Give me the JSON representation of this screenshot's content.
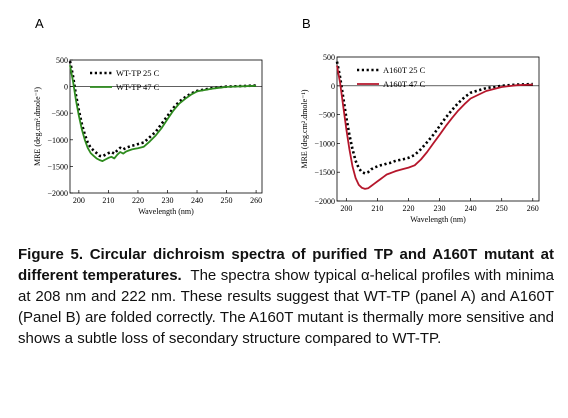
{
  "panels": [
    {
      "letter": "A"
    },
    {
      "letter": "B"
    }
  ],
  "chart_data": [
    {
      "type": "line",
      "xlabel": "Wavelength (nm)",
      "ylabel": "MRE (deg.cm².dmole⁻¹)",
      "xlim": [
        197,
        262
      ],
      "ylim": [
        -2000,
        500
      ],
      "xticks": [
        200,
        210,
        220,
        230,
        240,
        250,
        260
      ],
      "yticks": [
        500,
        0,
        -500,
        -1000,
        -1500,
        -2000
      ],
      "legend_position": "top-left",
      "grid": false,
      "series": [
        {
          "name": "WT-TP 25 C",
          "color": "#000000",
          "style": "dotted",
          "x": [
            197,
            198,
            199,
            200,
            201,
            202,
            203,
            204,
            205,
            206,
            207,
            208,
            209,
            210,
            211,
            212,
            213,
            214,
            215,
            216,
            217,
            218,
            219,
            220,
            222,
            224,
            226,
            228,
            230,
            232,
            234,
            236,
            238,
            240,
            245,
            250,
            255,
            260
          ],
          "y": [
            480,
            200,
            -150,
            -450,
            -700,
            -900,
            -1050,
            -1150,
            -1200,
            -1250,
            -1300,
            -1310,
            -1280,
            -1250,
            -1230,
            -1260,
            -1200,
            -1150,
            -1180,
            -1150,
            -1130,
            -1110,
            -1100,
            -1080,
            -1050,
            -950,
            -850,
            -700,
            -550,
            -400,
            -280,
            -200,
            -130,
            -80,
            -30,
            0,
            10,
            20
          ]
        },
        {
          "name": "WT-TP 47 C",
          "color": "#2e8b1e",
          "style": "solid",
          "x": [
            197,
            198,
            199,
            200,
            201,
            202,
            203,
            204,
            205,
            206,
            207,
            208,
            209,
            210,
            211,
            212,
            213,
            214,
            215,
            216,
            217,
            218,
            219,
            220,
            222,
            224,
            226,
            228,
            230,
            232,
            234,
            236,
            238,
            240,
            245,
            250,
            255,
            260
          ],
          "y": [
            400,
            100,
            -250,
            -550,
            -800,
            -1000,
            -1150,
            -1250,
            -1300,
            -1350,
            -1380,
            -1400,
            -1370,
            -1340,
            -1320,
            -1350,
            -1280,
            -1230,
            -1260,
            -1220,
            -1200,
            -1180,
            -1170,
            -1160,
            -1130,
            -1030,
            -920,
            -780,
            -610,
            -450,
            -320,
            -230,
            -150,
            -90,
            -40,
            -5,
            5,
            15
          ]
        }
      ]
    },
    {
      "type": "line",
      "xlabel": "Wavelength (nm)",
      "ylabel": "MRE (deg.cm².dmole⁻¹)",
      "xlim": [
        197,
        262
      ],
      "ylim": [
        -2000,
        500
      ],
      "xticks": [
        200,
        210,
        220,
        230,
        240,
        250,
        260
      ],
      "yticks": [
        500,
        0,
        -500,
        -1000,
        -1500,
        -2000
      ],
      "legend_position": "top-left",
      "grid": false,
      "series": [
        {
          "name": "A160T 25 C",
          "color": "#000000",
          "style": "dotted",
          "x": [
            197,
            198,
            199,
            200,
            201,
            202,
            203,
            204,
            205,
            206,
            207,
            208,
            209,
            210,
            211,
            212,
            213,
            214,
            215,
            216,
            218,
            220,
            222,
            224,
            226,
            228,
            230,
            232,
            234,
            236,
            238,
            240,
            245,
            250,
            255,
            260
          ],
          "y": [
            420,
            150,
            -200,
            -550,
            -850,
            -1100,
            -1300,
            -1430,
            -1500,
            -1520,
            -1500,
            -1450,
            -1420,
            -1400,
            -1380,
            -1370,
            -1350,
            -1340,
            -1320,
            -1300,
            -1280,
            -1250,
            -1200,
            -1100,
            -980,
            -850,
            -700,
            -550,
            -420,
            -300,
            -200,
            -120,
            -40,
            0,
            20,
            30
          ]
        },
        {
          "name": "A160T 47 C",
          "color": "#b5162b",
          "style": "solid",
          "x": [
            197,
            198,
            199,
            200,
            201,
            202,
            203,
            204,
            205,
            206,
            207,
            208,
            209,
            210,
            211,
            212,
            213,
            214,
            215,
            216,
            218,
            220,
            222,
            224,
            226,
            228,
            230,
            232,
            234,
            236,
            238,
            240,
            245,
            250,
            255,
            260
          ],
          "y": [
            350,
            50,
            -350,
            -750,
            -1100,
            -1400,
            -1600,
            -1720,
            -1770,
            -1790,
            -1780,
            -1740,
            -1700,
            -1660,
            -1620,
            -1580,
            -1540,
            -1520,
            -1500,
            -1480,
            -1450,
            -1420,
            -1380,
            -1280,
            -1150,
            -1000,
            -850,
            -700,
            -560,
            -430,
            -320,
            -220,
            -90,
            -20,
            10,
            20
          ]
        }
      ]
    }
  ],
  "caption": {
    "title": "Figure 5.  Circular dichroism spectra of purified TP and A160T mutant at different temperatures.",
    "body": "The spectra show typical α-helical profiles with minima at 208 nm and 222 nm. These results suggest that WT-TP (panel A) and A160T (Panel B) are folded correctly. The A160T mutant is thermally more sensitive and shows a subtle loss of secondary structure compared to WT-TP."
  }
}
